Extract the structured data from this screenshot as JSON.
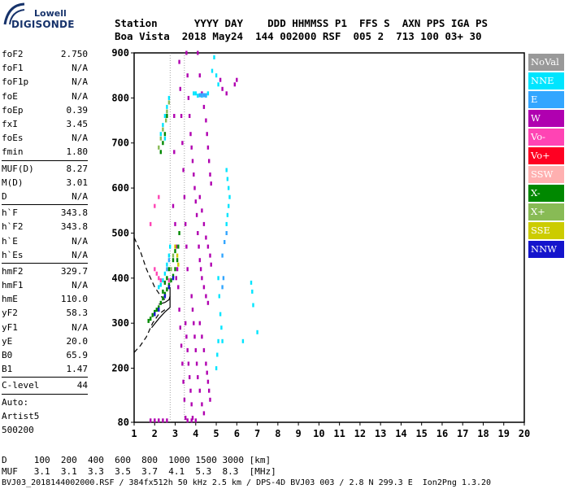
{
  "logo": {
    "line1": "Lowell",
    "line2": "DIGISONDE"
  },
  "header": {
    "labels": "Station      YYYY DAY    DDD HHMMSS P1  FFS S  AXN PPS IGA PS",
    "values": "Boa Vista  2018 May24  144 002000 RSF  005 2  713 100 03+ 30"
  },
  "params": [
    [
      {
        "name": "foF2",
        "value": "2.750"
      },
      {
        "name": "foF1",
        "value": "N/A"
      },
      {
        "name": "foF1p",
        "value": "N/A"
      },
      {
        "name": "foE",
        "value": "N/A"
      },
      {
        "name": "foEp",
        "value": "0.39"
      },
      {
        "name": "fxI",
        "value": "3.45"
      },
      {
        "name": "foEs",
        "value": "N/A"
      },
      {
        "name": "fmin",
        "value": "1.80"
      }
    ],
    [
      {
        "name": "MUF(D)",
        "value": "8.27"
      },
      {
        "name": "M(D)",
        "value": "3.01"
      },
      {
        "name": "D",
        "value": "N/A"
      }
    ],
    [
      {
        "name": "h`F",
        "value": "343.8"
      },
      {
        "name": "h`F2",
        "value": "343.8"
      },
      {
        "name": "h`E",
        "value": "N/A"
      },
      {
        "name": "h`Es",
        "value": "N/A"
      }
    ],
    [
      {
        "name": "hmF2",
        "value": "329.7"
      },
      {
        "name": "hmF1",
        "value": "N/A"
      },
      {
        "name": "hmE",
        "value": "110.0"
      },
      {
        "name": "yF2",
        "value": "58.3"
      },
      {
        "name": "yF1",
        "value": "N/A"
      },
      {
        "name": "yE",
        "value": "20.0"
      },
      {
        "name": "B0",
        "value": "65.9"
      },
      {
        "name": "B1",
        "value": "1.47"
      }
    ],
    [
      {
        "name": "C-level",
        "value": "44"
      }
    ],
    [
      {
        "name": "Auto:",
        "value": ""
      },
      {
        "name": "Artist5",
        "value": ""
      },
      {
        "name": "500200",
        "value": ""
      }
    ]
  ],
  "legend": [
    {
      "label": "NoVal",
      "color": "#999999"
    },
    {
      "label": "NNE",
      "color": "#00e5ff"
    },
    {
      "label": "E",
      "color": "#33a6ff"
    },
    {
      "label": "W",
      "color": "#b000b0"
    },
    {
      "label": "Vo-",
      "color": "#ff44b4"
    },
    {
      "label": "Vo+",
      "color": "#ff0022"
    },
    {
      "label": "SSW",
      "color": "#ffb0b0"
    },
    {
      "label": "X-",
      "color": "#008800"
    },
    {
      "label": "X+",
      "color": "#88bb55"
    },
    {
      "label": "SSE",
      "color": "#cccc00"
    },
    {
      "label": "NNW",
      "color": "#1414cc"
    }
  ],
  "footer": {
    "line1": "D     100  200  400  600  800  1000 1500 3000 [km]",
    "line2": "MUF   3.1  3.1  3.3  3.5  3.7  4.1  5.3  8.3  [MHz]",
    "line3": "BVJ03_2018144002000.RSF / 384fx512h 50 kHz 2.5 km / DPS-4D BVJ03 003 / 2.8 N 299.3 E  Ion2Png 1.3.20"
  },
  "chart_data": {
    "type": "scatter",
    "xlim": [
      1,
      20
    ],
    "ylim": [
      80,
      900
    ],
    "x_ticks": [
      1,
      2,
      3,
      4,
      5,
      6,
      7,
      8,
      9,
      10,
      11,
      12,
      13,
      14,
      15,
      16,
      17,
      18,
      19,
      20
    ],
    "y_ticks": [
      80,
      200,
      300,
      400,
      500,
      600,
      700,
      800,
      900
    ],
    "grid": "vertical dotted lines at 2.75 and 3.45 MHz",
    "series": [
      {
        "name": "W",
        "color": "#b000b0",
        "points": [
          [
            3.55,
            900
          ],
          [
            3.6,
            850
          ],
          [
            3.65,
            800
          ],
          [
            3.7,
            760
          ],
          [
            3.75,
            720
          ],
          [
            3.8,
            690
          ],
          [
            3.85,
            660
          ],
          [
            3.9,
            630
          ],
          [
            3.95,
            600
          ],
          [
            4.0,
            570
          ],
          [
            4.05,
            540
          ],
          [
            4.1,
            500
          ],
          [
            4.15,
            470
          ],
          [
            4.2,
            440
          ],
          [
            4.25,
            420
          ],
          [
            4.3,
            400
          ],
          [
            4.4,
            380
          ],
          [
            4.5,
            360
          ],
          [
            4.6,
            345
          ],
          [
            4.1,
            900
          ],
          [
            4.2,
            850
          ],
          [
            4.3,
            810
          ],
          [
            4.4,
            780
          ],
          [
            4.5,
            750
          ],
          [
            4.55,
            720
          ],
          [
            4.6,
            690
          ],
          [
            4.65,
            660
          ],
          [
            4.7,
            630
          ],
          [
            4.75,
            610
          ],
          [
            3.2,
            880
          ],
          [
            3.25,
            820
          ],
          [
            3.3,
            760
          ],
          [
            3.35,
            700
          ],
          [
            3.4,
            640
          ],
          [
            3.45,
            580
          ],
          [
            3.5,
            520
          ],
          [
            3.55,
            470
          ],
          [
            3.6,
            420
          ],
          [
            3.0,
            520
          ],
          [
            3.05,
            470
          ],
          [
            3.1,
            420
          ],
          [
            3.15,
            380
          ],
          [
            3.2,
            330
          ],
          [
            3.25,
            290
          ],
          [
            3.3,
            250
          ],
          [
            3.35,
            210
          ],
          [
            3.4,
            170
          ],
          [
            3.45,
            130
          ],
          [
            3.5,
            90
          ],
          [
            3.5,
            300
          ],
          [
            3.55,
            270
          ],
          [
            3.6,
            240
          ],
          [
            3.65,
            210
          ],
          [
            3.7,
            180
          ],
          [
            3.75,
            150
          ],
          [
            3.8,
            120
          ],
          [
            3.85,
            90
          ],
          [
            3.8,
            360
          ],
          [
            3.85,
            330
          ],
          [
            3.9,
            300
          ],
          [
            3.95,
            270
          ],
          [
            4.0,
            240
          ],
          [
            4.05,
            210
          ],
          [
            4.1,
            180
          ],
          [
            4.2,
            150
          ],
          [
            4.3,
            120
          ],
          [
            4.4,
            100
          ],
          [
            4.2,
            300
          ],
          [
            4.3,
            270
          ],
          [
            4.4,
            240
          ],
          [
            4.5,
            210
          ],
          [
            4.55,
            190
          ],
          [
            4.6,
            170
          ],
          [
            4.65,
            150
          ],
          [
            4.7,
            130
          ],
          [
            4.2,
            580
          ],
          [
            4.3,
            550
          ],
          [
            4.4,
            520
          ],
          [
            4.5,
            490
          ],
          [
            4.6,
            470
          ],
          [
            4.7,
            450
          ],
          [
            4.75,
            430
          ],
          [
            2.6,
            84
          ],
          [
            2.4,
            84
          ],
          [
            2.2,
            84
          ],
          [
            2.0,
            84
          ],
          [
            1.8,
            84
          ],
          [
            3.6,
            84
          ],
          [
            3.8,
            84
          ],
          [
            4.0,
            84
          ],
          [
            5.2,
            840
          ],
          [
            5.3,
            820
          ],
          [
            5.5,
            810
          ],
          [
            5.9,
            830
          ],
          [
            6.0,
            840
          ],
          [
            2.95,
            680
          ],
          [
            2.95,
            760
          ],
          [
            2.9,
            560
          ],
          [
            3.05,
            400
          ]
        ]
      },
      {
        "name": "NNE",
        "color": "#00e5ff",
        "points": [
          [
            2.2,
            380
          ],
          [
            2.3,
            385
          ],
          [
            2.4,
            395
          ],
          [
            2.5,
            410
          ],
          [
            2.6,
            430
          ],
          [
            2.7,
            450
          ],
          [
            2.75,
            470
          ],
          [
            2.3,
            720
          ],
          [
            2.4,
            740
          ],
          [
            2.5,
            760
          ],
          [
            2.6,
            780
          ],
          [
            2.7,
            800
          ],
          [
            2.5,
            710
          ],
          [
            5.5,
            520
          ],
          [
            5.55,
            540
          ],
          [
            5.6,
            560
          ],
          [
            5.65,
            580
          ],
          [
            5.6,
            600
          ],
          [
            5.55,
            620
          ],
          [
            5.5,
            640
          ],
          [
            6.7,
            390
          ],
          [
            6.75,
            370
          ],
          [
            6.8,
            340
          ],
          [
            7.0,
            280
          ],
          [
            6.3,
            260
          ],
          [
            5.1,
            400
          ],
          [
            5.15,
            360
          ],
          [
            5.2,
            320
          ],
          [
            5.25,
            290
          ],
          [
            5.3,
            260
          ],
          [
            5.1,
            830
          ],
          [
            5.0,
            850
          ],
          [
            4.9,
            890
          ],
          [
            4.8,
            860
          ],
          [
            5.0,
            200
          ],
          [
            5.05,
            230
          ],
          [
            5.1,
            260
          ],
          [
            3.9,
            810
          ],
          [
            4.0,
            810
          ],
          [
            4.1,
            805
          ],
          [
            4.3,
            805
          ],
          [
            4.5,
            805
          ],
          [
            4.6,
            810
          ]
        ]
      },
      {
        "name": "E",
        "color": "#33a6ff",
        "points": [
          [
            4.2,
            806
          ],
          [
            4.3,
            806
          ],
          [
            4.4,
            806
          ],
          [
            4.5,
            806
          ],
          [
            5.3,
            380
          ],
          [
            5.35,
            400
          ],
          [
            5.3,
            450
          ],
          [
            5.4,
            480
          ],
          [
            5.5,
            500
          ],
          [
            2.6,
            420
          ],
          [
            2.7,
            440
          ]
        ]
      },
      {
        "name": "Vo-",
        "color": "#ff44b4",
        "points": [
          [
            2.0,
            420
          ],
          [
            2.1,
            410
          ],
          [
            2.2,
            400
          ],
          [
            2.3,
            395
          ],
          [
            2.5,
            390
          ],
          [
            2.7,
            395
          ],
          [
            1.8,
            520
          ],
          [
            2.0,
            560
          ],
          [
            2.2,
            580
          ]
        ]
      },
      {
        "name": "X-",
        "color": "#008800",
        "points": [
          [
            1.7,
            305
          ],
          [
            1.8,
            310
          ],
          [
            1.9,
            318
          ],
          [
            2.0,
            325
          ],
          [
            2.1,
            330
          ],
          [
            2.2,
            335
          ],
          [
            2.3,
            345
          ],
          [
            2.4,
            355
          ],
          [
            2.5,
            365
          ],
          [
            2.6,
            375
          ],
          [
            2.7,
            385
          ],
          [
            2.8,
            395
          ],
          [
            2.9,
            405
          ],
          [
            3.0,
            420
          ],
          [
            3.1,
            440
          ],
          [
            3.15,
            470
          ],
          [
            3.2,
            500
          ],
          [
            2.4,
            370
          ],
          [
            2.5,
            390
          ],
          [
            2.6,
            400
          ],
          [
            2.7,
            420
          ],
          [
            2.9,
            440
          ],
          [
            3.0,
            460
          ],
          [
            2.3,
            680
          ],
          [
            2.4,
            700
          ],
          [
            2.5,
            720
          ],
          [
            2.6,
            760
          ]
        ]
      },
      {
        "name": "X+",
        "color": "#88bb55",
        "points": [
          [
            2.2,
            690
          ],
          [
            2.3,
            710
          ],
          [
            2.4,
            730
          ],
          [
            2.55,
            750
          ],
          [
            2.6,
            770
          ],
          [
            2.7,
            790
          ],
          [
            2.8,
            420
          ],
          [
            2.9,
            450
          ]
        ]
      },
      {
        "name": "SSE",
        "color": "#cccc00",
        "points": [
          [
            3.0,
            470
          ],
          [
            3.1,
            450
          ],
          [
            3.15,
            430
          ]
        ]
      },
      {
        "name": "NNW",
        "color": "#1414cc",
        "points": [
          [
            2.0,
            320
          ],
          [
            2.2,
            330
          ],
          [
            2.5,
            360
          ],
          [
            2.7,
            380
          ],
          [
            2.9,
            400
          ]
        ]
      }
    ],
    "profile_curves": [
      {
        "style": "dashed",
        "points": [
          [
            1.0,
            490
          ],
          [
            1.3,
            460
          ],
          [
            1.6,
            420
          ],
          [
            2.0,
            380
          ],
          [
            2.3,
            360
          ],
          [
            2.6,
            348
          ]
        ]
      },
      {
        "style": "dashed",
        "points": [
          [
            1.0,
            235
          ],
          [
            1.3,
            250
          ],
          [
            1.6,
            270
          ],
          [
            1.9,
            300
          ],
          [
            2.2,
            320
          ],
          [
            2.5,
            330
          ]
        ]
      },
      {
        "style": "solid",
        "points": [
          [
            2.2,
            342
          ],
          [
            2.5,
            346
          ],
          [
            2.7,
            352
          ],
          [
            2.75,
            360
          ]
        ]
      },
      {
        "style": "solid",
        "points": [
          [
            1.85,
            290
          ],
          [
            2.2,
            310
          ],
          [
            2.5,
            325
          ],
          [
            2.75,
            335
          ],
          [
            2.75,
            380
          ]
        ]
      }
    ]
  }
}
